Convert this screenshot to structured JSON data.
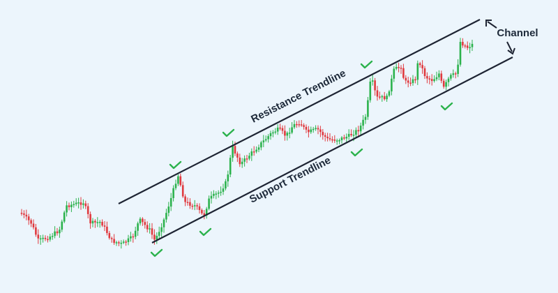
{
  "labels": {
    "resistance": "Resistance Trendline",
    "support": "Support Trendline",
    "channel": "Channel"
  }
}
